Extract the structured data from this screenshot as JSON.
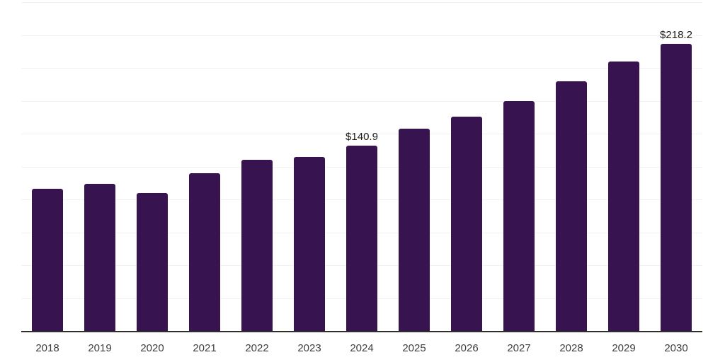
{
  "chart_data": {
    "type": "bar",
    "title": "",
    "xlabel": "",
    "ylabel": "",
    "categories": [
      "2018",
      "2019",
      "2020",
      "2021",
      "2022",
      "2023",
      "2024",
      "2025",
      "2026",
      "2027",
      "2028",
      "2029",
      "2030"
    ],
    "values": [
      108,
      112,
      105,
      120,
      130,
      132,
      140.9,
      154,
      163,
      175,
      190,
      205,
      218.2
    ],
    "point_labels": [
      "",
      "",
      "",
      "",
      "",
      "",
      "$140.9",
      "",
      "",
      "",
      "",
      "",
      "$218.2"
    ],
    "ylim": [
      0,
      250
    ],
    "gridline_interval": 25,
    "grid": "horizontal",
    "legend_position": "none",
    "y_axis_tick_labels_visible": false,
    "colors": {
      "bar": "#371450",
      "axis_line": "#2e2e2e",
      "gridline": "#f2f2f2",
      "x_tick_label": "#3d3d3d",
      "data_label": "#1a1a1a",
      "background": "#ffffff"
    }
  }
}
